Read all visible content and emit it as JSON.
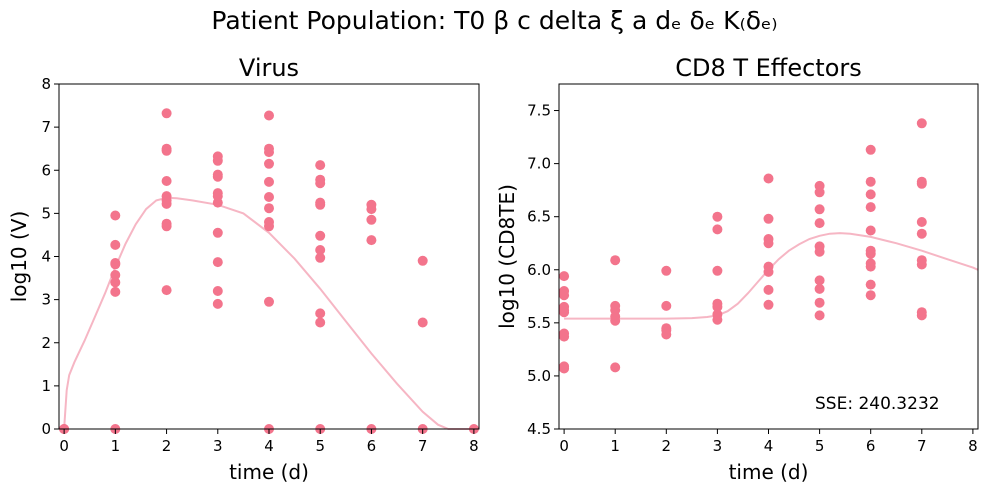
{
  "figure": {
    "suptitle": "Patient Population: T0 β c delta ξ a dₑ δₑ K₍δₑ₎"
  },
  "chart_data": [
    {
      "type": "scatter",
      "title": "Virus",
      "xlabel": "time (d)",
      "ylabel": "log10 (V)",
      "xlim": [
        -0.1,
        8.1
      ],
      "ylim": [
        0,
        8
      ],
      "xticks": [
        0,
        1,
        2,
        3,
        4,
        5,
        6,
        7,
        8
      ],
      "yticks": [
        0,
        1,
        2,
        3,
        4,
        5,
        6,
        7,
        8
      ],
      "grid": false,
      "marker_color": "#f3748c",
      "line_color": "#f6b6c4",
      "points": [
        [
          0,
          0
        ],
        [
          0,
          0
        ],
        [
          1,
          4.95
        ],
        [
          1,
          4.27
        ],
        [
          1,
          3.85
        ],
        [
          1,
          3.82
        ],
        [
          1,
          3.57
        ],
        [
          1,
          3.4
        ],
        [
          1,
          3.18
        ],
        [
          1,
          0
        ],
        [
          2,
          7.32
        ],
        [
          2,
          6.5
        ],
        [
          2,
          6.45
        ],
        [
          2,
          5.75
        ],
        [
          2,
          5.4
        ],
        [
          2,
          5.3
        ],
        [
          2,
          5.22
        ],
        [
          2,
          4.76
        ],
        [
          2,
          4.7
        ],
        [
          2,
          3.22
        ],
        [
          3,
          6.32
        ],
        [
          3,
          6.22
        ],
        [
          3,
          5.9
        ],
        [
          3,
          5.85
        ],
        [
          3,
          5.47
        ],
        [
          3,
          5.4
        ],
        [
          3,
          5.25
        ],
        [
          3,
          4.55
        ],
        [
          3,
          3.87
        ],
        [
          3,
          3.2
        ],
        [
          3,
          2.9
        ],
        [
          4,
          7.27
        ],
        [
          4,
          6.5
        ],
        [
          4,
          6.42
        ],
        [
          4,
          6.15
        ],
        [
          4,
          5.73
        ],
        [
          4,
          5.38
        ],
        [
          4,
          5.12
        ],
        [
          4,
          4.8
        ],
        [
          4,
          4.7
        ],
        [
          4,
          2.95
        ],
        [
          4,
          0
        ],
        [
          5,
          6.12
        ],
        [
          5,
          5.78
        ],
        [
          5,
          5.7
        ],
        [
          5,
          5.25
        ],
        [
          5,
          5.2
        ],
        [
          5,
          4.48
        ],
        [
          5,
          4.15
        ],
        [
          5,
          3.97
        ],
        [
          5,
          2.68
        ],
        [
          5,
          2.47
        ],
        [
          5,
          0
        ],
        [
          6,
          5.2
        ],
        [
          6,
          5.1
        ],
        [
          6,
          4.85
        ],
        [
          6,
          4.38
        ],
        [
          6,
          0
        ],
        [
          7,
          3.9
        ],
        [
          7,
          2.47
        ],
        [
          7,
          0
        ],
        [
          8,
          0
        ]
      ],
      "fit": {
        "name": "",
        "x": [
          0,
          0.05,
          0.1,
          0.2,
          0.4,
          0.6,
          0.8,
          1.0,
          1.2,
          1.4,
          1.6,
          1.8,
          2.0,
          2.2,
          2.5,
          3.0,
          3.5,
          4.0,
          4.5,
          5.0,
          5.5,
          6.0,
          6.5,
          7.0,
          7.3,
          7.5,
          7.7,
          8.0
        ],
        "y": [
          0,
          0.9,
          1.25,
          1.55,
          2.05,
          2.6,
          3.15,
          3.75,
          4.3,
          4.75,
          5.1,
          5.3,
          5.36,
          5.35,
          5.3,
          5.2,
          5.0,
          4.55,
          3.95,
          3.25,
          2.5,
          1.75,
          1.05,
          0.4,
          0.1,
          0,
          0,
          0
        ]
      }
    },
    {
      "type": "scatter",
      "title": "CD8 T Effectors",
      "xlabel": "time (d)",
      "ylabel": "log10 (CD8TE)",
      "xlim": [
        -0.1,
        8.1
      ],
      "ylim": [
        4.5,
        7.75
      ],
      "xticks": [
        0,
        1,
        2,
        3,
        4,
        5,
        6,
        7,
        8
      ],
      "yticks": [
        4.5,
        5.0,
        5.5,
        6.0,
        6.5,
        7.0,
        7.5
      ],
      "grid": false,
      "marker_color": "#f3748c",
      "line_color": "#f6b6c4",
      "annotation": "SSE: 240.3232",
      "points": [
        [
          0,
          5.94
        ],
        [
          0,
          5.8
        ],
        [
          0,
          5.76
        ],
        [
          0,
          5.65
        ],
        [
          0,
          5.62
        ],
        [
          0,
          5.6
        ],
        [
          0,
          5.4
        ],
        [
          0,
          5.37
        ],
        [
          0,
          5.09
        ],
        [
          0,
          5.07
        ],
        [
          1,
          6.09
        ],
        [
          1,
          5.66
        ],
        [
          1,
          5.62
        ],
        [
          1,
          5.56
        ],
        [
          1,
          5.52
        ],
        [
          1,
          5.08
        ],
        [
          2,
          5.99
        ],
        [
          2,
          5.66
        ],
        [
          2,
          5.45
        ],
        [
          2,
          5.43
        ],
        [
          2,
          5.39
        ],
        [
          3,
          6.5
        ],
        [
          3,
          6.38
        ],
        [
          3,
          5.99
        ],
        [
          3,
          5.68
        ],
        [
          3,
          5.65
        ],
        [
          3,
          5.58
        ],
        [
          3,
          5.53
        ],
        [
          4,
          6.86
        ],
        [
          4,
          6.48
        ],
        [
          4,
          6.29
        ],
        [
          4,
          6.25
        ],
        [
          4,
          6.03
        ],
        [
          4,
          5.98
        ],
        [
          4,
          5.81
        ],
        [
          4,
          5.67
        ],
        [
          5,
          6.79
        ],
        [
          5,
          6.73
        ],
        [
          5,
          6.57
        ],
        [
          5,
          6.44
        ],
        [
          5,
          6.22
        ],
        [
          5,
          6.17
        ],
        [
          5,
          5.9
        ],
        [
          5,
          5.82
        ],
        [
          5,
          5.69
        ],
        [
          5,
          5.57
        ],
        [
          6,
          7.13
        ],
        [
          6,
          6.83
        ],
        [
          6,
          6.71
        ],
        [
          6,
          6.59
        ],
        [
          6,
          6.37
        ],
        [
          6,
          6.18
        ],
        [
          6,
          6.15
        ],
        [
          6,
          6.06
        ],
        [
          6,
          6.03
        ],
        [
          6,
          5.86
        ],
        [
          6,
          5.76
        ],
        [
          7,
          7.38
        ],
        [
          7,
          6.83
        ],
        [
          7,
          6.81
        ],
        [
          7,
          6.45
        ],
        [
          7,
          6.34
        ],
        [
          7,
          6.09
        ],
        [
          7,
          6.05
        ],
        [
          7,
          5.6
        ],
        [
          7,
          5.57
        ]
      ],
      "fit": {
        "name": "",
        "x": [
          0,
          0.5,
          1.0,
          1.5,
          2.0,
          2.5,
          2.8,
          3.0,
          3.2,
          3.4,
          3.6,
          3.8,
          4.0,
          4.2,
          4.4,
          4.6,
          4.8,
          5.0,
          5.2,
          5.4,
          5.6,
          6.0,
          6.5,
          7.0,
          7.5,
          8.0,
          8.1
        ],
        "y": [
          5.54,
          5.54,
          5.54,
          5.54,
          5.54,
          5.545,
          5.555,
          5.57,
          5.61,
          5.68,
          5.78,
          5.89,
          6.0,
          6.1,
          6.18,
          6.24,
          6.29,
          6.32,
          6.34,
          6.345,
          6.34,
          6.31,
          6.25,
          6.18,
          6.1,
          6.02,
          6.0
        ]
      }
    }
  ]
}
